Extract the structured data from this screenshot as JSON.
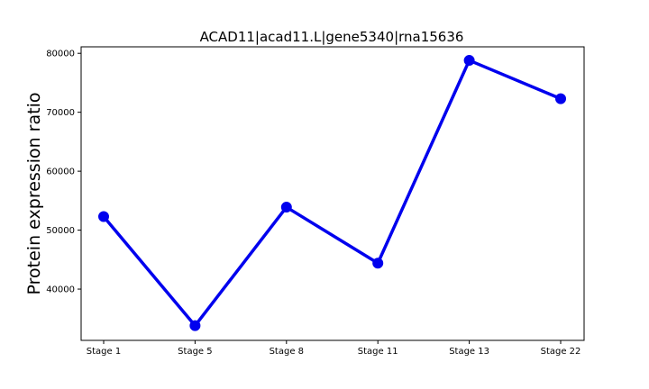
{
  "chart_data": {
    "type": "line",
    "title": "ACAD11|acad11.L|gene5340|rna15636",
    "xlabel": "",
    "ylabel": "Protein expression ratio",
    "categories": [
      "Stage 1",
      "Stage 5",
      "Stage 8",
      "Stage 11",
      "Stage 13",
      "Stage 22"
    ],
    "series": [
      {
        "name": "Protein expression ratio",
        "values": [
          52300,
          33800,
          53900,
          44400,
          78800,
          72300
        ],
        "color": "#0000ee"
      }
    ],
    "ylim": [
      31300,
      81100
    ],
    "yticks": [
      40000,
      50000,
      60000,
      70000,
      80000
    ],
    "grid": false,
    "legend": "none"
  }
}
